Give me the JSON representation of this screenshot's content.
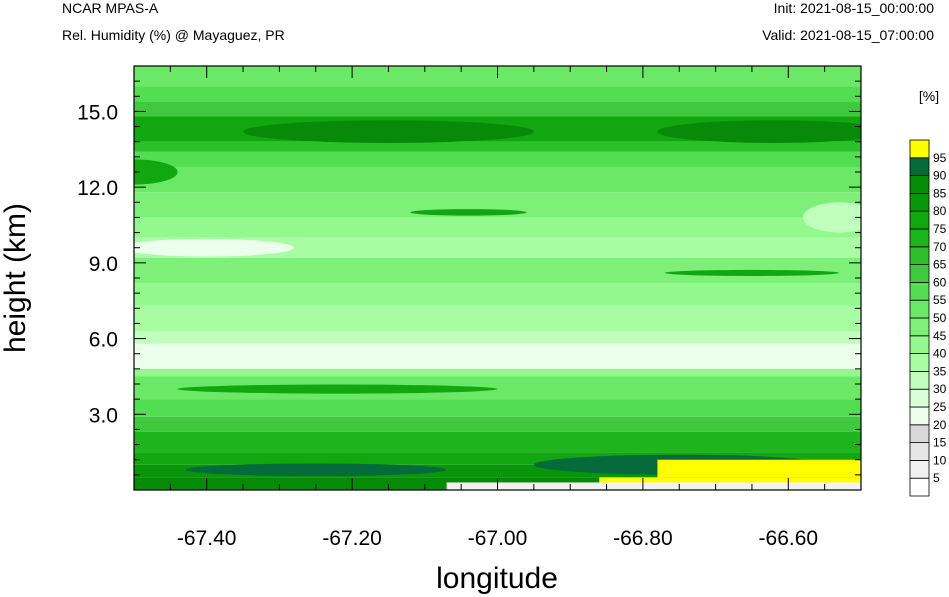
{
  "header": {
    "title": "NCAR MPAS-A",
    "subtitle": "Rel. Humidity (%) @ Mayaguez, PR",
    "init": "Init: 2021-08-15_00:00:00",
    "valid": "Valid: 2021-08-15_07:00:00"
  },
  "chart_data": {
    "type": "heatmap",
    "xlabel": "longitude",
    "ylabel": "height (km)",
    "xlim": [
      -67.5,
      -66.5
    ],
    "ylim": [
      0,
      16.8
    ],
    "x_ticks": [
      -67.4,
      -67.2,
      -67.0,
      -66.8,
      -66.6
    ],
    "x_tick_labels": [
      "-67.40",
      "-67.20",
      "-67.00",
      "-66.80",
      "-66.60"
    ],
    "y_ticks": [
      3.0,
      6.0,
      9.0,
      12.0,
      15.0
    ],
    "y_tick_labels": [
      "3.0",
      "6.0",
      "9.0",
      "12.0",
      "15.0"
    ],
    "colorbar": {
      "unit_label": "[%]",
      "levels": [
        5,
        10,
        15,
        20,
        25,
        30,
        35,
        40,
        45,
        50,
        55,
        60,
        65,
        70,
        75,
        80,
        85,
        90,
        95
      ],
      "labels": [
        "5",
        "10",
        "15",
        "20",
        "25",
        "30",
        "35",
        "40",
        "45",
        "50",
        "55",
        "60",
        "65",
        "70",
        "75",
        "80",
        "85",
        "90",
        "95"
      ],
      "colors": [
        "#ffffff",
        "#f2f2f2",
        "#e6e6e6",
        "#d8d8d8",
        "#ecffec",
        "#d9ffd8",
        "#c0ffbc",
        "#a8fda3",
        "#93f88e",
        "#7ef07a",
        "#6ae866",
        "#53dd52",
        "#40c83f",
        "#2ec02c",
        "#1eb41c",
        "#12a610",
        "#0a960a",
        "#078a07",
        "#056b3b",
        "#fffd00"
      ]
    },
    "bands": [
      {
        "y0": 0.0,
        "y1": 0.5,
        "rh": 85
      },
      {
        "y0": 0.5,
        "y1": 1.0,
        "rh": 80
      },
      {
        "y0": 1.0,
        "y1": 1.5,
        "rh": 75
      },
      {
        "y0": 1.5,
        "y1": 2.3,
        "rh": 70
      },
      {
        "y0": 2.3,
        "y1": 2.9,
        "rh": 60
      },
      {
        "y0": 2.9,
        "y1": 3.6,
        "rh": 55
      },
      {
        "y0": 3.6,
        "y1": 4.5,
        "rh": 50
      },
      {
        "y0": 4.5,
        "y1": 4.8,
        "rh": 40
      },
      {
        "y0": 4.8,
        "y1": 5.8,
        "rh": 20
      },
      {
        "y0": 5.8,
        "y1": 6.3,
        "rh": 30
      },
      {
        "y0": 6.3,
        "y1": 7.3,
        "rh": 35
      },
      {
        "y0": 7.3,
        "y1": 8.2,
        "rh": 40
      },
      {
        "y0": 8.2,
        "y1": 9.2,
        "rh": 45
      },
      {
        "y0": 9.2,
        "y1": 10.0,
        "rh": 35
      },
      {
        "y0": 10.0,
        "y1": 10.8,
        "rh": 40
      },
      {
        "y0": 10.8,
        "y1": 11.8,
        "rh": 45
      },
      {
        "y0": 11.8,
        "y1": 12.8,
        "rh": 50
      },
      {
        "y0": 12.8,
        "y1": 13.4,
        "rh": 55
      },
      {
        "y0": 13.4,
        "y1": 13.8,
        "rh": 65
      },
      {
        "y0": 13.8,
        "y1": 14.8,
        "rh": 75
      },
      {
        "y0": 14.8,
        "y1": 15.4,
        "rh": 60
      },
      {
        "y0": 15.4,
        "y1": 16.0,
        "rh": 55
      },
      {
        "y0": 16.0,
        "y1": 16.8,
        "rh": 50
      }
    ],
    "features": [
      {
        "shape": "ellipse",
        "cx": -67.15,
        "cy": 14.2,
        "rx": 0.2,
        "ry": 0.45,
        "rh": 85
      },
      {
        "shape": "ellipse",
        "cx": -66.62,
        "cy": 14.2,
        "rx": 0.16,
        "ry": 0.45,
        "rh": 85
      },
      {
        "shape": "ellipse",
        "cx": -67.5,
        "cy": 12.6,
        "rx": 0.06,
        "ry": 0.5,
        "rh": 75
      },
      {
        "shape": "ellipse",
        "cx": -67.04,
        "cy": 11.0,
        "rx": 0.08,
        "ry": 0.13,
        "rh": 75
      },
      {
        "shape": "ellipse",
        "cx": -66.65,
        "cy": 8.6,
        "rx": 0.12,
        "ry": 0.12,
        "rh": 75
      },
      {
        "shape": "ellipse",
        "cx": -67.4,
        "cy": 9.6,
        "rx": 0.12,
        "ry": 0.35,
        "rh": 20
      },
      {
        "shape": "ellipse",
        "cx": -66.53,
        "cy": 10.8,
        "rx": 0.05,
        "ry": 0.6,
        "rh": 30
      },
      {
        "shape": "ellipse",
        "cx": -67.22,
        "cy": 4.0,
        "rx": 0.22,
        "ry": 0.18,
        "rh": 75
      },
      {
        "shape": "ellipse",
        "cx": -67.25,
        "cy": 0.8,
        "rx": 0.18,
        "ry": 0.25,
        "rh": 90
      },
      {
        "shape": "ellipse",
        "cx": -66.75,
        "cy": 1.0,
        "rx": 0.2,
        "ry": 0.4,
        "rh": 90
      },
      {
        "shape": "rect",
        "x0": -66.86,
        "x1": -66.5,
        "y0": 0.0,
        "y1": 0.5,
        "rh": 95
      },
      {
        "shape": "rect",
        "x0": -66.78,
        "x1": -66.5,
        "y0": 0.5,
        "y1": 1.2,
        "rh": 100
      },
      {
        "shape": "rect",
        "x0": -67.07,
        "x1": -66.5,
        "y0": 0.0,
        "y1": 0.3,
        "rh": 5
      }
    ]
  }
}
